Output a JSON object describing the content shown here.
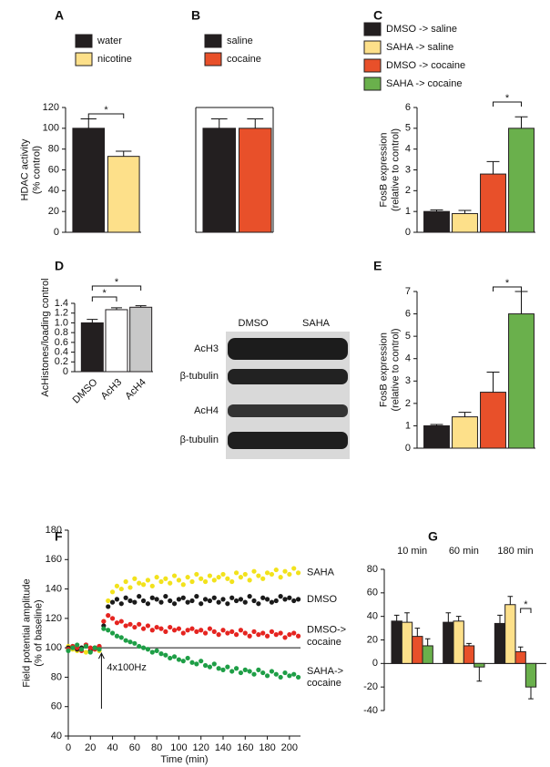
{
  "chart_data": [
    {
      "type": "bar",
      "panel": "A",
      "categories": [
        "water",
        "nicotine"
      ],
      "values": [
        100,
        73
      ],
      "errors": [
        9,
        5
      ],
      "colors": [
        "#231f20",
        "#fde08a"
      ],
      "legend": true,
      "ylabel": "HDAC activity\n(% control)",
      "ylim": [
        0,
        120
      ],
      "yticks": [
        0,
        20,
        40,
        60,
        80,
        100,
        120
      ],
      "annotations": [
        "*"
      ]
    },
    {
      "type": "bar",
      "panel": "B",
      "categories": [
        "saline",
        "cocaine"
      ],
      "values": [
        100,
        100
      ],
      "errors": [
        9,
        9
      ],
      "colors": [
        "#231f20",
        "#e8502a"
      ],
      "legend": true,
      "ylim": [
        0,
        120
      ]
    },
    {
      "type": "bar",
      "panel": "C",
      "categories": [
        "DMSO -> saline",
        "SAHA -> saline",
        "DMSO -> cocaine",
        "SAHA -> cocaine"
      ],
      "values": [
        1.0,
        0.9,
        2.8,
        5.0
      ],
      "errors": [
        0.08,
        0.15,
        0.6,
        0.55
      ],
      "colors": [
        "#231f20",
        "#fde08a",
        "#e8502a",
        "#6ab04c"
      ],
      "legend": true,
      "ylabel": "FosB expression\n(relative to control)",
      "ylim": [
        0,
        6
      ],
      "yticks": [
        0,
        1,
        2,
        3,
        4,
        5,
        6
      ],
      "annotations": [
        "*"
      ]
    },
    {
      "type": "bar",
      "panel": "D",
      "categories": [
        "DMSO",
        "AcH3",
        "AcH4"
      ],
      "values": [
        1.0,
        1.27,
        1.32
      ],
      "errors": [
        0.07,
        0.04,
        0.03
      ],
      "colors": [
        "#231f20",
        "#ffffff",
        "#c8c8c8"
      ],
      "ylabel": "AcHistones/loading control",
      "ylim": [
        0,
        1.4
      ],
      "yticks": [
        0,
        0.2,
        0.4,
        0.6,
        0.8,
        {
          "value": 1,
          "label": "1.0"
        },
        1.2,
        1.4
      ],
      "annotations": [
        "*",
        "*"
      ]
    },
    {
      "type": "bar",
      "panel": "E",
      "values": [
        1.0,
        1.4,
        2.5,
        6.0
      ],
      "errors": [
        0.06,
        0.2,
        0.9,
        1.0
      ],
      "colors": [
        "#231f20",
        "#fde08a",
        "#e8502a",
        "#6ab04c"
      ],
      "ylabel": "FosB expression\n(relative to control)",
      "ylim": [
        0,
        7
      ],
      "yticks": [
        0,
        1,
        2,
        3,
        4,
        5,
        6,
        7
      ],
      "annotations": [
        "*"
      ]
    },
    {
      "type": "scatter",
      "panel": "F",
      "xlabel": "Time (min)",
      "ylabel": "Field potential amplitude\n(% of baseline)",
      "x": [
        0,
        4,
        8,
        12,
        16,
        20,
        24,
        28,
        32,
        36,
        40,
        44,
        48,
        52,
        56,
        60,
        64,
        68,
        72,
        76,
        80,
        84,
        88,
        92,
        96,
        100,
        104,
        108,
        112,
        116,
        120,
        124,
        128,
        132,
        136,
        140,
        144,
        148,
        152,
        156,
        160,
        164,
        168,
        172,
        176,
        180,
        184,
        188,
        192,
        196,
        200,
        204,
        208
      ],
      "series": [
        {
          "name": "SAHA",
          "color": "#f2e21c",
          "values": [
            101,
            99,
            98,
            100,
            97,
            99,
            100,
            98,
            118,
            132,
            138,
            142,
            140,
            145,
            141,
            147,
            144,
            143,
            146,
            142,
            148,
            145,
            147,
            144,
            149,
            146,
            143,
            148,
            145,
            150,
            147,
            145,
            149,
            146,
            148,
            150,
            147,
            145,
            151,
            148,
            150,
            146,
            152,
            149,
            147,
            151,
            150,
            153,
            148,
            152,
            150,
            154,
            151
          ]
        },
        {
          "name": "DMSO",
          "color": "#1a1a1a",
          "values": [
            100,
            101,
            99,
            100,
            102,
            98,
            100,
            101,
            115,
            128,
            131,
            133,
            130,
            134,
            132,
            131,
            135,
            132,
            130,
            134,
            133,
            131,
            135,
            132,
            130,
            133,
            134,
            131,
            132,
            135,
            130,
            133,
            132,
            134,
            131,
            133,
            130,
            134,
            132,
            133,
            131,
            135,
            132,
            130,
            134,
            133,
            131,
            132,
            135,
            133,
            134,
            132,
            133
          ]
        },
        {
          "name": "DMSO->\ncocaine",
          "color": "#e52420",
          "values": [
            99,
            101,
            100,
            98,
            102,
            100,
            99,
            101,
            118,
            122,
            120,
            117,
            118,
            115,
            116,
            114,
            116,
            113,
            115,
            112,
            114,
            113,
            111,
            114,
            112,
            113,
            110,
            112,
            113,
            111,
            112,
            110,
            113,
            111,
            109,
            112,
            110,
            111,
            109,
            112,
            110,
            108,
            111,
            109,
            110,
            108,
            111,
            109,
            110,
            107,
            109,
            110,
            108
          ]
        },
        {
          "name": "SAHA->\ncocaine",
          "color": "#1e9e46",
          "values": [
            98,
            100,
            102,
            99,
            101,
            97,
            100,
            99,
            113,
            112,
            110,
            108,
            107,
            105,
            104,
            103,
            101,
            100,
            99,
            97,
            98,
            96,
            95,
            93,
            94,
            92,
            91,
            93,
            90,
            89,
            91,
            88,
            87,
            89,
            86,
            85,
            87,
            84,
            86,
            83,
            85,
            84,
            82,
            85,
            83,
            81,
            84,
            82,
            80,
            83,
            81,
            82,
            80
          ]
        }
      ],
      "hline": 100,
      "annotations": [
        {
          "text": "4x100Hz",
          "x": 30
        }
      ],
      "xlim": [
        0,
        210
      ],
      "xticks": [
        0,
        20,
        40,
        60,
        80,
        100,
        120,
        140,
        160,
        180,
        200
      ],
      "ylim": [
        40,
        180
      ],
      "yticks": [
        40,
        60,
        80,
        100,
        120,
        140,
        160,
        180
      ]
    },
    {
      "type": "bar",
      "panel": "G",
      "categories": [
        "10 min",
        "60 min",
        "180 min"
      ],
      "series": [
        {
          "color": "#231f20",
          "values": [
            36,
            35,
            34
          ],
          "errors": [
            5,
            8,
            7
          ]
        },
        {
          "color": "#fde08a",
          "values": [
            35,
            36,
            50
          ],
          "errors": [
            8,
            4,
            7
          ]
        },
        {
          "color": "#e8502a",
          "values": [
            23,
            15,
            10
          ],
          "errors": [
            7,
            2,
            4
          ]
        },
        {
          "color": "#6ab04c",
          "values": [
            15,
            -3,
            -20
          ],
          "errors": [
            6,
            12,
            10
          ]
        }
      ],
      "ylim": [
        -40,
        80
      ],
      "yticks": [
        -40,
        -20,
        0,
        20,
        40,
        60,
        80
      ],
      "annotations": [
        "*"
      ]
    }
  ],
  "blot": {
    "columns": [
      "DMSO",
      "SAHA"
    ],
    "rows": [
      "AcH3",
      "β-tubulin",
      "AcH4",
      "β-tubulin"
    ]
  }
}
